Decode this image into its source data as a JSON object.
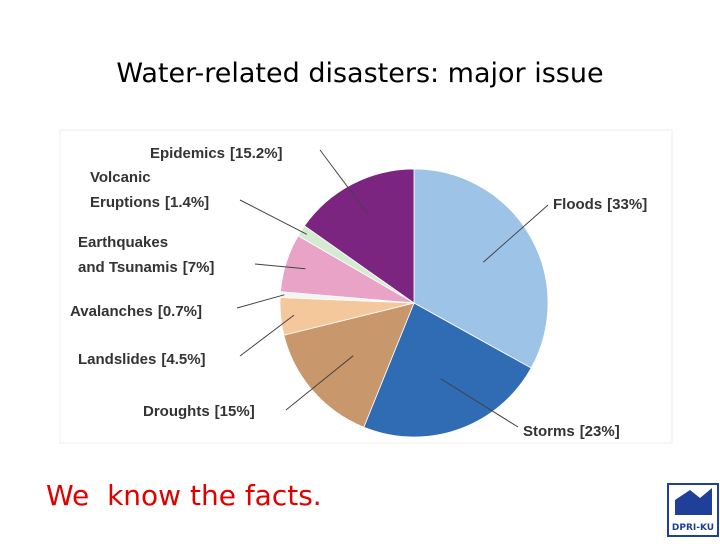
{
  "slide": {
    "title": "Water-related disasters: major issue",
    "footer": "We  know the facts.",
    "logo": "DPRI-KU"
  },
  "chart_data": {
    "type": "pie",
    "categories": [
      "Floods",
      "Storms",
      "Droughts",
      "Landslides",
      "Avalanches",
      "Earthquakes and Tsunamis",
      "Volcanic Eruptions",
      "Epidemics"
    ],
    "values": [
      33,
      23,
      15,
      4.5,
      0.7,
      7,
      1.4,
      15.2
    ],
    "value_labels": [
      "[33%]",
      "[23%]",
      "[15%]",
      "[4.5%]",
      "[0.7%]",
      "[7%]",
      "[1.4%]",
      "[15.2%]"
    ],
    "colors": [
      "#9dc3e6",
      "#2f6cb3",
      "#c9976c",
      "#f5c89b",
      "#f4f4f4",
      "#e8a3c6",
      "#d5ebd1",
      "#7b2581"
    ]
  }
}
